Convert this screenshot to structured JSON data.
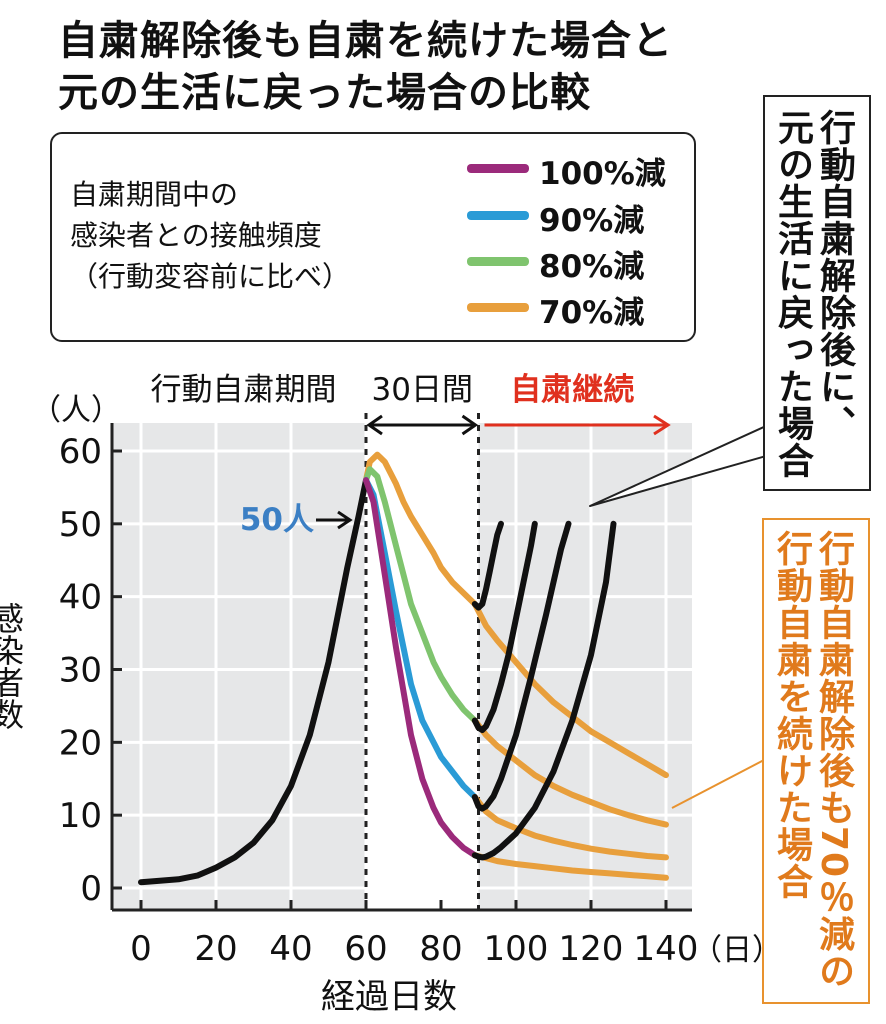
{
  "title": {
    "line1": "自粛解除後も自粛を続けた場合と",
    "line2": "元の生活に戻った場合の比較"
  },
  "legend": {
    "description_lines": [
      "自粛期間中の",
      "感染者との接触頻度",
      "（行動変容前に比べ）"
    ],
    "items": [
      {
        "label": "100%減",
        "color": "#9b2a7b"
      },
      {
        "label": "90%減",
        "color": "#2a9bd6"
      },
      {
        "label": "80%減",
        "color": "#7fc46e"
      },
      {
        "label": "70%減",
        "color": "#e89f3c"
      }
    ]
  },
  "periods": {
    "self_restraint_period": "行動自粛期間",
    "thirty_days": "30日間",
    "continued": "自粛継続"
  },
  "annotation_50": "50人",
  "callout_return": {
    "col1": "行動自粛解除後に、",
    "col2": "元の生活に戻った場合"
  },
  "callout_continue": {
    "col1": "行動自粛解除後も70％減の",
    "col2": "行動自粛を続けた場合"
  },
  "colors": {
    "black_line": "#111111",
    "orange_line": "#e89f3c",
    "red_arrow": "#e0301e",
    "blue_text": "#3b7fc4",
    "orange_text": "#e07a1c",
    "plot_bg": "#e6e7e8"
  },
  "chart_data": {
    "type": "line",
    "xlabel": "経過日数",
    "x_unit": "（日）",
    "ylabel": "感染者数",
    "y_unit": "（人）",
    "xlim": [
      0,
      140
    ],
    "ylim": [
      0,
      60
    ],
    "x_ticks": [
      0,
      20,
      40,
      60,
      80,
      100,
      120,
      140
    ],
    "y_ticks": [
      0,
      10,
      20,
      30,
      40,
      50,
      60
    ],
    "grid": true,
    "shaded_before_day": 60,
    "shaded_after_day": 90,
    "series": [
      {
        "name": "",
        "color": "#111111",
        "x": [
          0,
          5,
          10,
          15,
          20,
          25,
          30,
          35,
          40,
          45,
          50,
          55,
          58,
          60
        ],
        "y": [
          0.8,
          1.0,
          1.2,
          1.7,
          2.8,
          4.2,
          6.2,
          9.3,
          14,
          21,
          31,
          44,
          51,
          56
        ]
      },
      {
        "name": "100%減",
        "color": "#9b2a7b",
        "x": [
          60,
          62,
          65,
          68,
          70,
          72,
          75,
          78,
          80,
          83,
          86,
          89
        ],
        "y": [
          56,
          53,
          43,
          33,
          27,
          21,
          15,
          11,
          9,
          7,
          5.5,
          4.5
        ]
      },
      {
        "name": "90%減",
        "color": "#2a9bd6",
        "x": [
          60,
          62,
          65,
          68,
          70,
          72,
          75,
          78,
          80,
          83,
          86,
          89
        ],
        "y": [
          56,
          54,
          46,
          38,
          33,
          28,
          23,
          20,
          18,
          16,
          14,
          12.5
        ]
      },
      {
        "name": "80%減",
        "color": "#7fc46e",
        "x": [
          60,
          61,
          63,
          65,
          68,
          70,
          72,
          75,
          78,
          80,
          83,
          86,
          89
        ],
        "y": [
          56,
          57.5,
          56.5,
          53,
          47,
          43,
          39,
          35,
          31,
          29,
          26.5,
          24.5,
          23
        ]
      },
      {
        "name": "70%減",
        "color": "#e89f3c",
        "x": [
          60,
          61,
          63,
          65,
          68,
          70,
          72,
          75,
          78,
          80,
          83,
          86,
          89
        ],
        "y": [
          56,
          58.5,
          59.5,
          58.5,
          55.5,
          53,
          51,
          48.5,
          46,
          44,
          42,
          40.5,
          39
        ]
      },
      {
        "name": "",
        "color": "#e89f3c",
        "x": [
          89,
          92,
          95,
          100,
          105,
          110,
          115,
          120,
          125,
          130,
          135,
          140
        ],
        "y": [
          39,
          36,
          34,
          31,
          28,
          25.5,
          23.5,
          21.5,
          20,
          18.5,
          17,
          15.5
        ]
      },
      {
        "name": "",
        "color": "#e89f3c",
        "x": [
          89,
          92,
          95,
          100,
          105,
          110,
          115,
          120,
          125,
          130,
          135,
          140
        ],
        "y": [
          23,
          21,
          19.5,
          17.5,
          15.5,
          14,
          12.8,
          11.8,
          10.8,
          10,
          9.3,
          8.7
        ]
      },
      {
        "name": "",
        "color": "#e89f3c",
        "x": [
          89,
          92,
          95,
          100,
          105,
          110,
          115,
          120,
          125,
          130,
          135,
          140
        ],
        "y": [
          12.5,
          10.5,
          9.3,
          8.2,
          7.2,
          6.5,
          5.9,
          5.4,
          5,
          4.7,
          4.4,
          4.2
        ]
      },
      {
        "name": "",
        "color": "#e89f3c",
        "x": [
          89,
          92,
          95,
          100,
          105,
          110,
          115,
          120,
          125,
          130,
          135,
          140
        ],
        "y": [
          4.5,
          4.1,
          3.7,
          3.3,
          3.0,
          2.7,
          2.4,
          2.2,
          2.0,
          1.8,
          1.6,
          1.4
        ]
      },
      {
        "name": "",
        "color": "#111111",
        "x": [
          89,
          90,
          91,
          92,
          93,
          94,
          95,
          96
        ],
        "y": [
          39,
          38.5,
          39,
          41,
          43.5,
          46,
          48.5,
          50
        ]
      },
      {
        "name": "",
        "color": "#111111",
        "x": [
          89,
          90,
          91,
          92,
          94,
          96,
          98,
          100,
          102,
          104,
          105
        ],
        "y": [
          23,
          22,
          21.7,
          22.2,
          24.5,
          28,
          32,
          37,
          42,
          47,
          50
        ]
      },
      {
        "name": "",
        "color": "#111111",
        "x": [
          89,
          90,
          91,
          92,
          94,
          96,
          100,
          104,
          108,
          112,
          114
        ],
        "y": [
          12.5,
          11.2,
          10.9,
          11.2,
          12.6,
          15,
          21,
          29,
          37.5,
          46.5,
          50
        ]
      },
      {
        "name": "",
        "color": "#111111",
        "x": [
          89,
          90,
          91,
          92,
          94,
          96,
          100,
          105,
          110,
          115,
          120,
          124,
          126
        ],
        "y": [
          4.5,
          4.3,
          4.2,
          4.3,
          4.8,
          5.6,
          7.5,
          11,
          16,
          23,
          32,
          42,
          50
        ]
      }
    ]
  }
}
